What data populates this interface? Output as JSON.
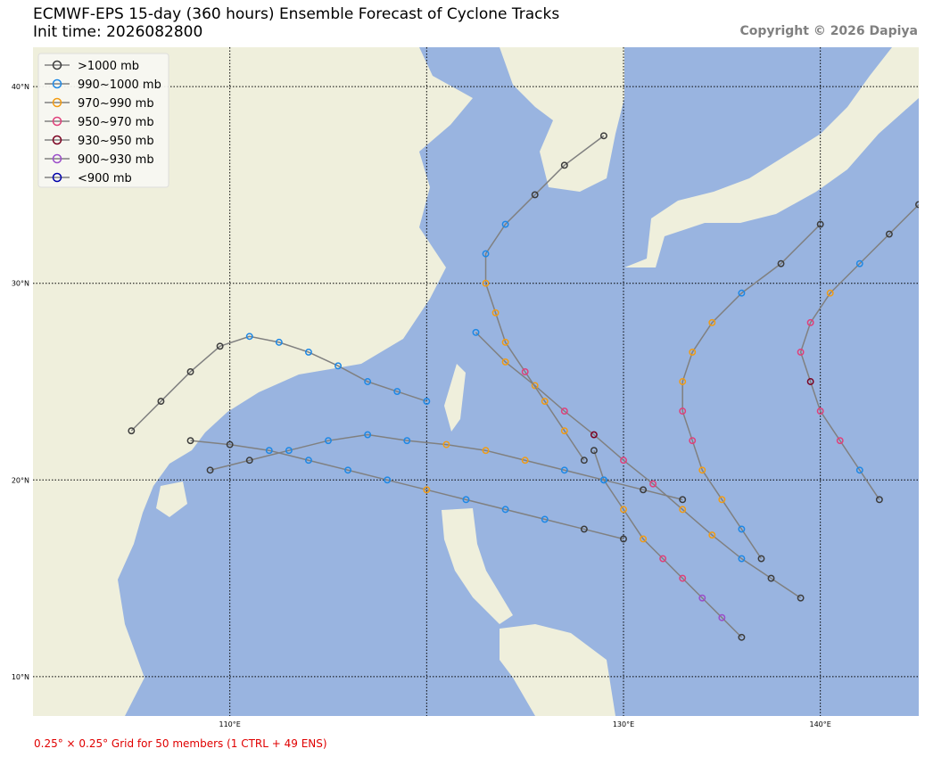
{
  "header": {
    "title": "ECMWF-EPS 15-day (360 hours) Ensemble Forecast of Cyclone Tracks",
    "init_time": "Init time: 2026082800",
    "copyright": "Copyright © 2026 Dapiya"
  },
  "footer": "0.25° × 0.25° Grid for 50 members (1 CTRL + 49 ENS)",
  "map": {
    "lonlim": [
      100,
      145
    ],
    "latlim": [
      8,
      42
    ],
    "lon_gridlines": [
      110,
      120,
      130,
      140
    ],
    "lon_ticks": [
      {
        "value": 110,
        "label": "110°E"
      },
      {
        "value": 130,
        "label": "130°E"
      },
      {
        "value": 140,
        "label": "140°E"
      }
    ],
    "lat_ticks": [
      {
        "value": 10,
        "label": "10°N"
      },
      {
        "value": 20,
        "label": "20°N"
      },
      {
        "value": 30,
        "label": "30°N"
      },
      {
        "value": 40,
        "label": "40°N"
      }
    ]
  },
  "legend": [
    {
      "name": ">1000 mb",
      "color": "#3c3c3c"
    },
    {
      "name": "990~1000 mb",
      "color": "#1e88e5"
    },
    {
      "name": "970~990 mb",
      "color": "#f39c12"
    },
    {
      "name": "950~970 mb",
      "color": "#e0407a"
    },
    {
      "name": "930~950 mb",
      "color": "#7b0020"
    },
    {
      "name": "900~930 mb",
      "color": "#9b4dca"
    },
    {
      "name": "<900 mb",
      "color": "#0000aa"
    }
  ],
  "tracks": [
    {
      "lon": [
        139,
        137.5,
        136,
        134.5,
        133,
        131.5,
        130,
        128.5,
        127,
        125.5,
        124,
        122.5
      ],
      "lat": [
        14,
        15,
        16,
        17.2,
        18.5,
        19.8,
        21,
        22.3,
        23.5,
        24.8,
        26,
        27.5
      ],
      "level": [
        0,
        0,
        1,
        2,
        2,
        3,
        3,
        4,
        3,
        2,
        2,
        1
      ]
    },
    {
      "lon": [
        133,
        131,
        129,
        127,
        125,
        123,
        121,
        119,
        117,
        115,
        113,
        111,
        109
      ],
      "lat": [
        19,
        19.5,
        20,
        20.5,
        21,
        21.5,
        21.8,
        22,
        22.3,
        22,
        21.5,
        21,
        20.5
      ],
      "level": [
        0,
        0,
        1,
        1,
        2,
        2,
        2,
        1,
        1,
        1,
        1,
        0,
        0
      ]
    },
    {
      "lon": [
        137,
        136,
        135,
        134,
        133.5,
        133,
        133,
        133.5,
        134.5,
        136,
        138,
        140
      ],
      "lat": [
        16,
        17.5,
        19,
        20.5,
        22,
        23.5,
        25,
        26.5,
        28,
        29.5,
        31,
        33
      ],
      "level": [
        0,
        1,
        2,
        2,
        3,
        3,
        2,
        2,
        2,
        1,
        0,
        0
      ]
    },
    {
      "lon": [
        130,
        128,
        126,
        124,
        122,
        120,
        118,
        116,
        114,
        112,
        110,
        108
      ],
      "lat": [
        17,
        17.5,
        18,
        18.5,
        19,
        19.5,
        20,
        20.5,
        21,
        21.5,
        21.8,
        22
      ],
      "level": [
        0,
        0,
        1,
        1,
        1,
        2,
        1,
        1,
        1,
        1,
        0,
        0
      ]
    },
    {
      "lon": [
        128,
        127,
        126,
        125,
        124,
        123.5,
        123,
        123,
        124,
        125.5,
        127,
        129
      ],
      "lat": [
        21,
        22.5,
        24,
        25.5,
        27,
        28.5,
        30,
        31.5,
        33,
        34.5,
        36,
        37.5
      ],
      "level": [
        0,
        2,
        2,
        3,
        2,
        2,
        2,
        1,
        1,
        0,
        0,
        0
      ]
    },
    {
      "lon": [
        143,
        142,
        141,
        140,
        139.5,
        139,
        139.5,
        140.5,
        142,
        143.5,
        145
      ],
      "lat": [
        19,
        20.5,
        22,
        23.5,
        25,
        26.5,
        28,
        29.5,
        31,
        32.5,
        34
      ],
      "level": [
        0,
        1,
        3,
        3,
        4,
        3,
        3,
        2,
        1,
        0,
        0
      ]
    },
    {
      "lon": [
        120,
        118.5,
        117,
        115.5,
        114,
        112.5,
        111,
        109.5,
        108,
        106.5,
        105
      ],
      "lat": [
        24,
        24.5,
        25,
        25.8,
        26.5,
        27,
        27.3,
        26.8,
        25.5,
        24,
        22.5
      ],
      "level": [
        1,
        1,
        1,
        1,
        1,
        1,
        1,
        0,
        0,
        0,
        0
      ]
    },
    {
      "lon": [
        136,
        135,
        134,
        133,
        132,
        131,
        130,
        129,
        128.5
      ],
      "lat": [
        12,
        13,
        14,
        15,
        16,
        17,
        18.5,
        20,
        21.5
      ],
      "level": [
        0,
        5,
        5,
        3,
        3,
        2,
        2,
        1,
        0
      ]
    }
  ]
}
